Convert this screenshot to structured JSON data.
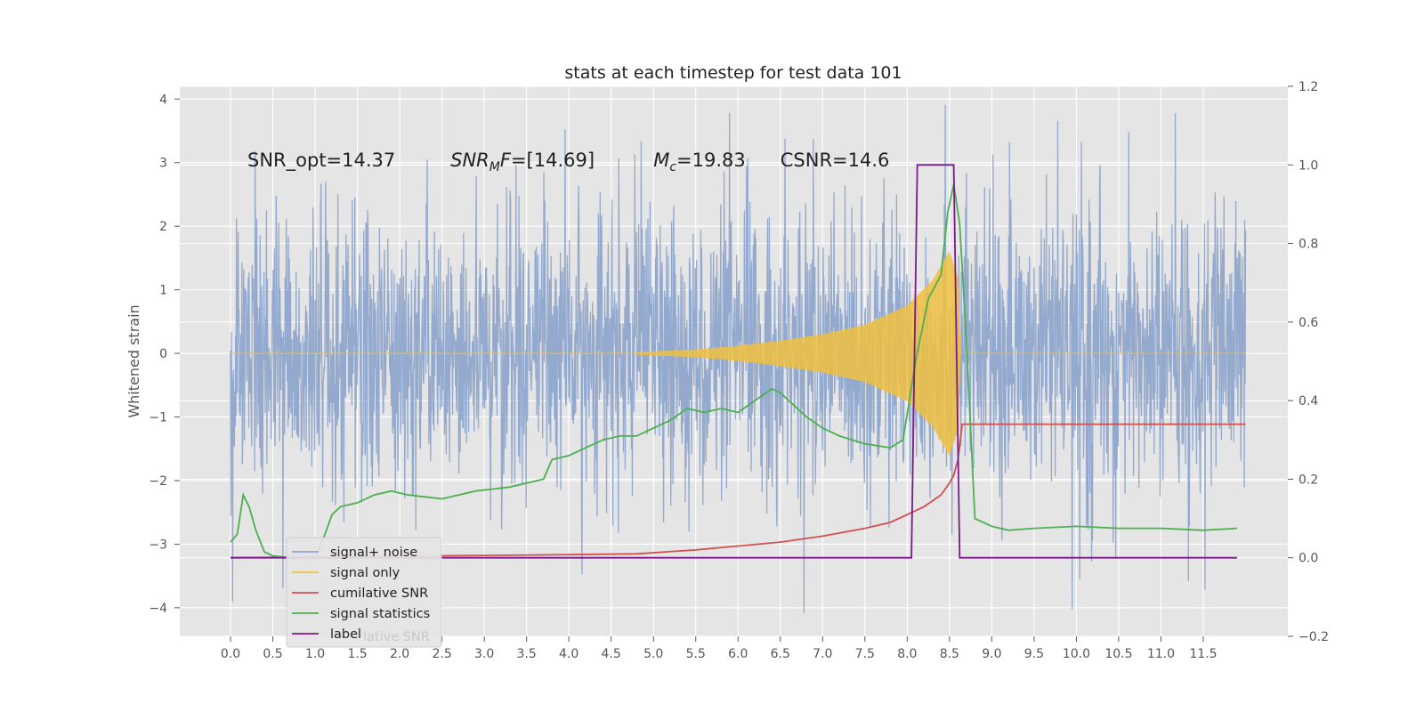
{
  "chart_data": {
    "type": "line",
    "title": "stats at each timestep for test data 101",
    "ylabel": "Whitened strain",
    "xlabel": "",
    "grid": true,
    "xlim": [
      -0.6,
      12.5
    ],
    "ylim": [
      -4.45,
      4.2
    ],
    "ylim_right": [
      -0.2,
      1.2
    ],
    "x_ticks": [
      "0.0",
      "0.5",
      "1.0",
      "1.5",
      "2.0",
      "2.5",
      "3.0",
      "3.5",
      "4.0",
      "4.5",
      "5.0",
      "5.5",
      "6.0",
      "6.5",
      "7.0",
      "7.5",
      "8.0",
      "8.5",
      "9.0",
      "9.5",
      "10.0",
      "10.5",
      "11.0",
      "11.5"
    ],
    "y_ticks": [
      "4",
      "3",
      "2",
      "1",
      "0",
      "−1",
      "−2",
      "−3",
      "−4"
    ],
    "y_ticks_right": [
      "1.2",
      "1.0",
      "0.8",
      "0.6",
      "0.4",
      "0.2",
      "0.0",
      "−0.2"
    ],
    "annotations": [
      {
        "text": "SNR_opt=14.37",
        "x": 0.2,
        "y": 3.05
      },
      {
        "text_main": "SNR",
        "text_sub": "M",
        "text_rest": "F=[14.69]",
        "x": 2.6,
        "y": 3.05
      },
      {
        "text_main": "M",
        "text_sub": "c",
        "text_rest": "=19.83",
        "x": 5.0,
        "y": 3.05
      },
      {
        "text": "CSNR=14.6",
        "x": 6.5,
        "y": 3.05
      }
    ],
    "legend": {
      "position": "lower-left",
      "entries": [
        {
          "label": "signal+ noise",
          "color": "#8ea5cc"
        },
        {
          "label": "signal only",
          "color": "#f0c040"
        },
        {
          "label": "cumilative SNR",
          "color": "#d05050"
        },
        {
          "label": "signal statistics",
          "color": "#4caf50"
        },
        {
          "label": "label",
          "color": "#7a1a8a"
        }
      ],
      "ghost_text": "lative SNR"
    },
    "series": [
      {
        "name": "signal+ noise",
        "color": "#8ea5cc",
        "axis": "left",
        "description_x_range": [
          0,
          12
        ],
        "envelope_typical": 1.7,
        "envelope_peaks": 3.4
      },
      {
        "name": "signal only",
        "color": "#f0c040",
        "axis": "left",
        "chirp_x": [
          4.8,
          5.5,
          6.0,
          6.5,
          7.0,
          7.5,
          8.0,
          8.3,
          8.5,
          8.6,
          8.63
        ],
        "chirp_amp": [
          0.02,
          0.06,
          0.12,
          0.2,
          0.3,
          0.45,
          0.75,
          1.15,
          1.6,
          1.2,
          0.0
        ]
      },
      {
        "name": "cumilative SNR",
        "color": "#d05050",
        "axis": "right",
        "x": [
          0.0,
          1.0,
          2.0,
          3.0,
          4.0,
          4.8,
          5.5,
          6.0,
          6.5,
          7.0,
          7.5,
          7.8,
          8.0,
          8.2,
          8.4,
          8.5,
          8.55,
          8.6,
          8.65,
          12.0
        ],
        "y": [
          0.0,
          0.002,
          0.004,
          0.006,
          0.008,
          0.01,
          0.02,
          0.03,
          0.04,
          0.055,
          0.075,
          0.09,
          0.11,
          0.13,
          0.16,
          0.19,
          0.21,
          0.25,
          0.34,
          0.34
        ]
      },
      {
        "name": "signal statistics",
        "color": "#4caf50",
        "axis": "right",
        "x": [
          0.0,
          0.08,
          0.15,
          0.22,
          0.3,
          0.4,
          0.5,
          0.7,
          1.0,
          1.1,
          1.2,
          1.3,
          1.5,
          1.7,
          1.9,
          2.1,
          2.3,
          2.5,
          2.7,
          2.9,
          3.1,
          3.3,
          3.5,
          3.7,
          3.8,
          4.0,
          4.2,
          4.4,
          4.6,
          4.8,
          5.0,
          5.2,
          5.4,
          5.6,
          5.8,
          6.0,
          6.2,
          6.4,
          6.5,
          6.6,
          6.8,
          7.0,
          7.2,
          7.5,
          7.8,
          7.95,
          8.1,
          8.25,
          8.4,
          8.48,
          8.55,
          8.62,
          8.7,
          8.8,
          9.0,
          9.2,
          9.5,
          10.0,
          10.5,
          11.0,
          11.5,
          11.9
        ],
        "y": [
          0.04,
          0.06,
          0.16,
          0.13,
          0.07,
          0.015,
          0.005,
          0.0,
          0.0,
          0.05,
          0.11,
          0.13,
          0.14,
          0.16,
          0.17,
          0.16,
          0.155,
          0.15,
          0.16,
          0.17,
          0.175,
          0.18,
          0.19,
          0.2,
          0.25,
          0.26,
          0.28,
          0.3,
          0.31,
          0.31,
          0.33,
          0.35,
          0.38,
          0.37,
          0.38,
          0.37,
          0.4,
          0.43,
          0.42,
          0.4,
          0.36,
          0.33,
          0.31,
          0.29,
          0.28,
          0.3,
          0.5,
          0.66,
          0.72,
          0.88,
          0.95,
          0.85,
          0.55,
          0.1,
          0.08,
          0.07,
          0.075,
          0.08,
          0.075,
          0.075,
          0.07,
          0.075
        ]
      },
      {
        "name": "label",
        "color": "#7a1a8a",
        "axis": "right",
        "x": [
          0.0,
          8.05,
          8.12,
          8.55,
          8.62,
          11.9
        ],
        "y": [
          0.0,
          0.0,
          1.0,
          1.0,
          0.0,
          0.0
        ]
      }
    ]
  }
}
